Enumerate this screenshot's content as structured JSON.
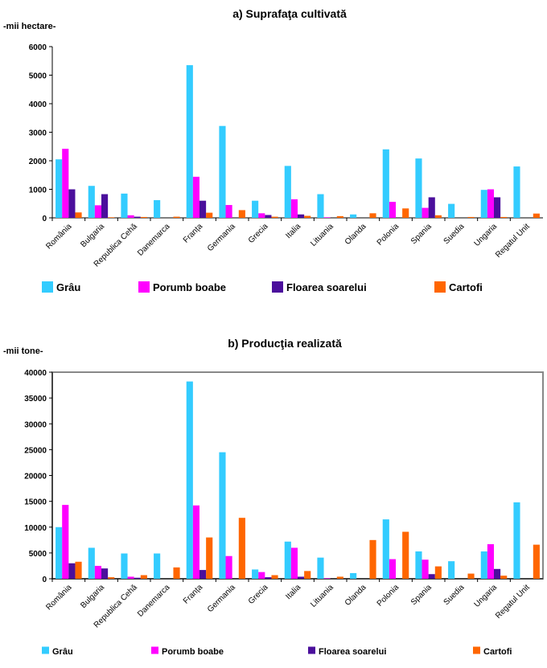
{
  "chart_data": [
    {
      "type": "bar",
      "title": "a) Suprafaţa cultivată",
      "ylabel": "-mii hectare-",
      "xlabel": "",
      "ylim": [
        0,
        6000
      ],
      "yticks": [
        0,
        1000,
        2000,
        3000,
        4000,
        5000,
        6000
      ],
      "categories": [
        "România",
        "Bulgaria",
        "Republica Cehă",
        "Danemarca",
        "Franța",
        "Germania",
        "Grecia",
        "Italia",
        "Lituania",
        "Olanda",
        "Polonia",
        "Spania",
        "Suedia",
        "Ungaria",
        "Regatul Unit"
      ],
      "series": [
        {
          "name": "Grâu",
          "color": "#33ccff",
          "values": [
            2050,
            1120,
            850,
            620,
            5350,
            3220,
            600,
            1820,
            830,
            120,
            2400,
            2080,
            490,
            980,
            1800
          ]
        },
        {
          "name": "Porumb boabe",
          "color": "#ff00ff",
          "values": [
            2420,
            440,
            90,
            0,
            1440,
            450,
            160,
            650,
            20,
            0,
            560,
            350,
            0,
            1000,
            0
          ]
        },
        {
          "name": "Floarea soarelui",
          "color": "#4b0f9c",
          "values": [
            1000,
            830,
            40,
            0,
            600,
            0,
            100,
            120,
            0,
            0,
            0,
            720,
            0,
            720,
            0
          ]
        },
        {
          "name": "Cartofi",
          "color": "#ff6600",
          "values": [
            190,
            20,
            30,
            40,
            180,
            270,
            40,
            70,
            60,
            160,
            330,
            90,
            30,
            30,
            150
          ]
        }
      ],
      "grid": false,
      "legend": "bottom"
    },
    {
      "type": "bar",
      "title": "b) Producţia realizată",
      "ylabel": "-mii tone-",
      "xlabel": "",
      "ylim": [
        0,
        40000
      ],
      "yticks": [
        0,
        5000,
        10000,
        15000,
        20000,
        25000,
        30000,
        35000,
        40000
      ],
      "categories": [
        "România",
        "Bulgaria",
        "Republica Cehă",
        "Danemarca",
        "Franța",
        "Germania",
        "Grecia",
        "Italia",
        "Lituania",
        "Olanda",
        "Polonia",
        "Spania",
        "Suedia",
        "Ungaria",
        "Regatul Unit"
      ],
      "series": [
        {
          "name": "Grâu",
          "color": "#33ccff",
          "values": [
            10000,
            6000,
            4900,
            4900,
            38200,
            24500,
            1800,
            7200,
            4100,
            1100,
            11500,
            5300,
            3400,
            5300,
            14800
          ]
        },
        {
          "name": "Porumb boabe",
          "color": "#ff00ff",
          "values": [
            14300,
            2500,
            400,
            0,
            14200,
            4400,
            1300,
            6000,
            100,
            0,
            3800,
            3700,
            0,
            6700,
            0
          ]
        },
        {
          "name": "Floarea soarelui",
          "color": "#4b0f9c",
          "values": [
            3000,
            2000,
            200,
            0,
            1700,
            0,
            300,
            400,
            0,
            0,
            0,
            900,
            0,
            1900,
            0
          ]
        },
        {
          "name": "Cartofi",
          "color": "#ff6600",
          "values": [
            3300,
            300,
            700,
            2200,
            8000,
            11800,
            700,
            1500,
            400,
            7500,
            9100,
            2400,
            1000,
            600,
            6600
          ]
        }
      ],
      "grid": false,
      "legend": "bottom"
    }
  ]
}
